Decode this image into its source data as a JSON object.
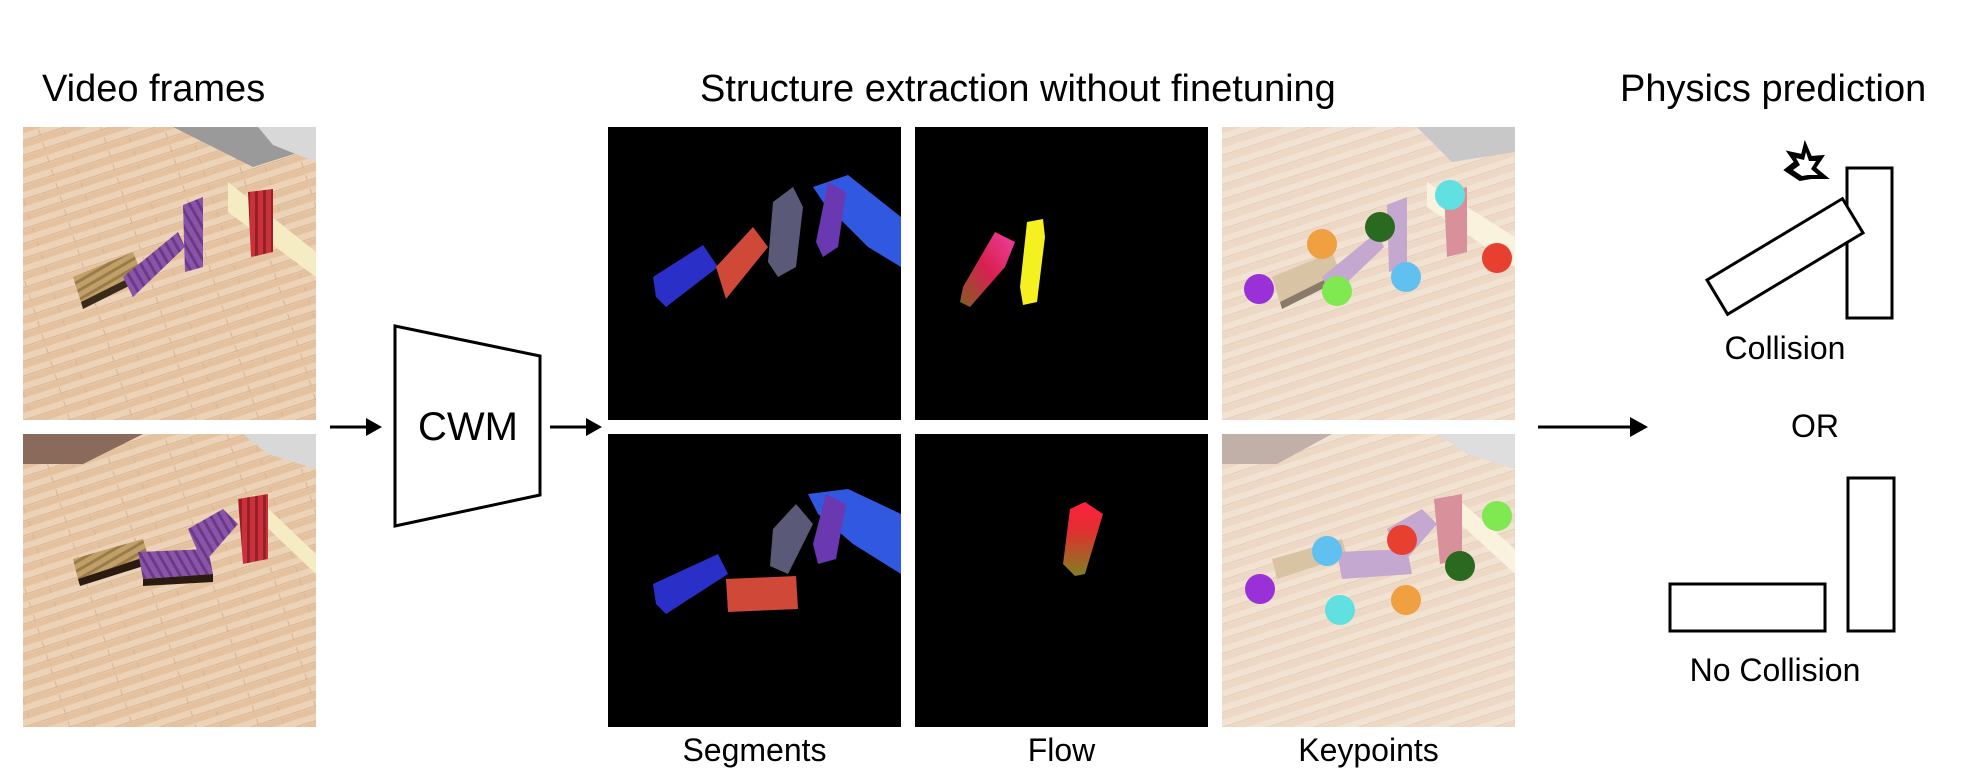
{
  "titles": {
    "video_frames": "Video frames",
    "structure": "Structure extraction without finetuning",
    "physics": "Physics prediction"
  },
  "model": {
    "label": "CWM"
  },
  "captions": {
    "segments": "Segments",
    "flow": "Flow",
    "keypoints": "Keypoints"
  },
  "prediction": {
    "collision": "Collision",
    "or": "OR",
    "no_collision": "No Collision"
  },
  "colors": {
    "wood": "#e8c9a8",
    "red_block": "#c8323c",
    "purple_block": "#8a55a8",
    "tan_block": "#b89a60",
    "segment_blue": "#2a2fc8",
    "segment_red": "#d04838",
    "segment_gray": "#5a5a78",
    "segment_purple": "#6a38b0",
    "segment_lightblue": "#3058e0",
    "flow_magenta": "#e02070",
    "flow_yellow": "#f5f020"
  }
}
